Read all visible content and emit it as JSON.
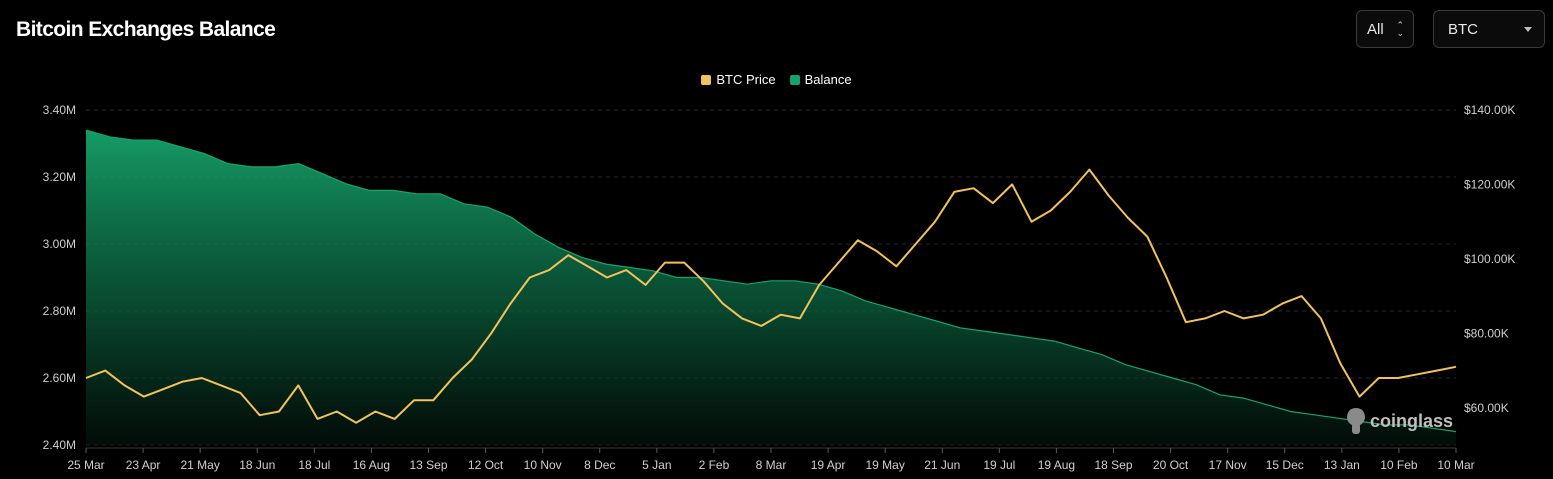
{
  "header": {
    "title": "Bitcoin Exchanges Balance"
  },
  "controls": {
    "range": {
      "value": "All",
      "icon": "updown-icon"
    },
    "coin": {
      "value": "BTC",
      "icon": "chevron-down-icon"
    }
  },
  "watermark": {
    "text": "coinglass",
    "icon": "coinglass-logo-icon"
  },
  "colors": {
    "price": "#f3c25a",
    "balance": "#17a46b",
    "background": "#000000"
  },
  "chart_data": {
    "type": "area",
    "title": "Bitcoin Exchanges Balance",
    "legend": [
      "BTC Price",
      "Balance"
    ],
    "legend_position": "top-center",
    "grid": true,
    "x_ticks": [
      "25 Mar",
      "23 Apr",
      "21 May",
      "18 Jun",
      "18 Jul",
      "16 Aug",
      "13 Sep",
      "12 Oct",
      "10 Nov",
      "8 Dec",
      "5 Jan",
      "2 Feb",
      "8 Mar",
      "19 Apr",
      "19 May",
      "21 Jun",
      "19 Jul",
      "19 Aug",
      "18 Sep",
      "20 Oct",
      "17 Nov",
      "15 Dec",
      "13 Jan",
      "10 Feb",
      "10 Mar"
    ],
    "y_left": {
      "ticks": [
        "2.40M",
        "2.60M",
        "2.80M",
        "3.00M",
        "3.20M",
        "3.40M"
      ],
      "range": [
        2.4,
        3.4
      ],
      "unit": "M"
    },
    "y_right": {
      "ticks": [
        "$60.00K",
        "$80.00K",
        "$100.00K",
        "$120.00K",
        "$140.00K"
      ],
      "range": [
        50,
        140
      ],
      "unit": "K USD"
    },
    "series": [
      {
        "name": "Balance",
        "axis": "left",
        "style": "area",
        "color": "#17a46b",
        "values": [
          3.34,
          3.32,
          3.31,
          3.31,
          3.29,
          3.27,
          3.24,
          3.23,
          3.23,
          3.24,
          3.21,
          3.18,
          3.16,
          3.16,
          3.15,
          3.15,
          3.12,
          3.11,
          3.08,
          3.03,
          2.99,
          2.96,
          2.94,
          2.93,
          2.92,
          2.9,
          2.9,
          2.89,
          2.88,
          2.89,
          2.89,
          2.88,
          2.86,
          2.83,
          2.81,
          2.79,
          2.77,
          2.75,
          2.74,
          2.73,
          2.72,
          2.71,
          2.69,
          2.67,
          2.64,
          2.62,
          2.6,
          2.58,
          2.55,
          2.54,
          2.52,
          2.5,
          2.49,
          2.48,
          2.47,
          2.46,
          2.46,
          2.45,
          2.44
        ]
      },
      {
        "name": "BTC Price",
        "axis": "right",
        "style": "line",
        "color": "#f3c25a",
        "values": [
          68,
          70,
          66,
          63,
          65,
          67,
          68,
          66,
          64,
          58,
          59,
          66,
          57,
          59,
          56,
          59,
          57,
          62,
          62,
          68,
          73,
          80,
          88,
          95,
          97,
          101,
          98,
          95,
          97,
          93,
          99,
          99,
          94,
          88,
          84,
          82,
          85,
          84,
          93,
          99,
          105,
          102,
          98,
          104,
          110,
          118,
          119,
          115,
          120,
          110,
          113,
          118,
          124,
          117,
          111,
          106,
          95,
          83,
          84,
          86,
          84,
          85,
          88,
          90,
          84,
          72,
          63,
          68,
          68,
          69,
          70,
          71
        ]
      }
    ]
  }
}
